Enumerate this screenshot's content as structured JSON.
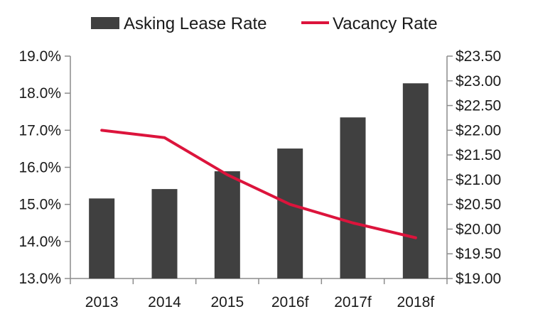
{
  "chart_data": {
    "type": "bar",
    "categories": [
      "2013",
      "2014",
      "2015",
      "2016f",
      "2017f",
      "2018f"
    ],
    "series": [
      {
        "name": "Asking Lease Rate",
        "type": "bar",
        "axis": "right",
        "color": "#404040",
        "values": [
          20.62,
          20.81,
          21.17,
          21.63,
          22.26,
          22.95
        ]
      },
      {
        "name": "Vacancy Rate",
        "type": "line",
        "axis": "left",
        "color": "#dc143c",
        "values": [
          17.0,
          16.8,
          15.8,
          15.0,
          14.5,
          14.1
        ]
      }
    ],
    "y_left": {
      "ylim": [
        13.0,
        19.0
      ],
      "ticks": [
        "13.0%",
        "14.0%",
        "15.0%",
        "16.0%",
        "17.0%",
        "18.0%",
        "19.0%"
      ]
    },
    "y_right": {
      "ylim": [
        19.0,
        23.5
      ],
      "ticks": [
        "$19.00",
        "$19.50",
        "$20.00",
        "$20.50",
        "$21.00",
        "$21.50",
        "$22.00",
        "$22.50",
        "$23.00",
        "$23.50"
      ]
    },
    "legend_position": "top",
    "grid": false
  }
}
